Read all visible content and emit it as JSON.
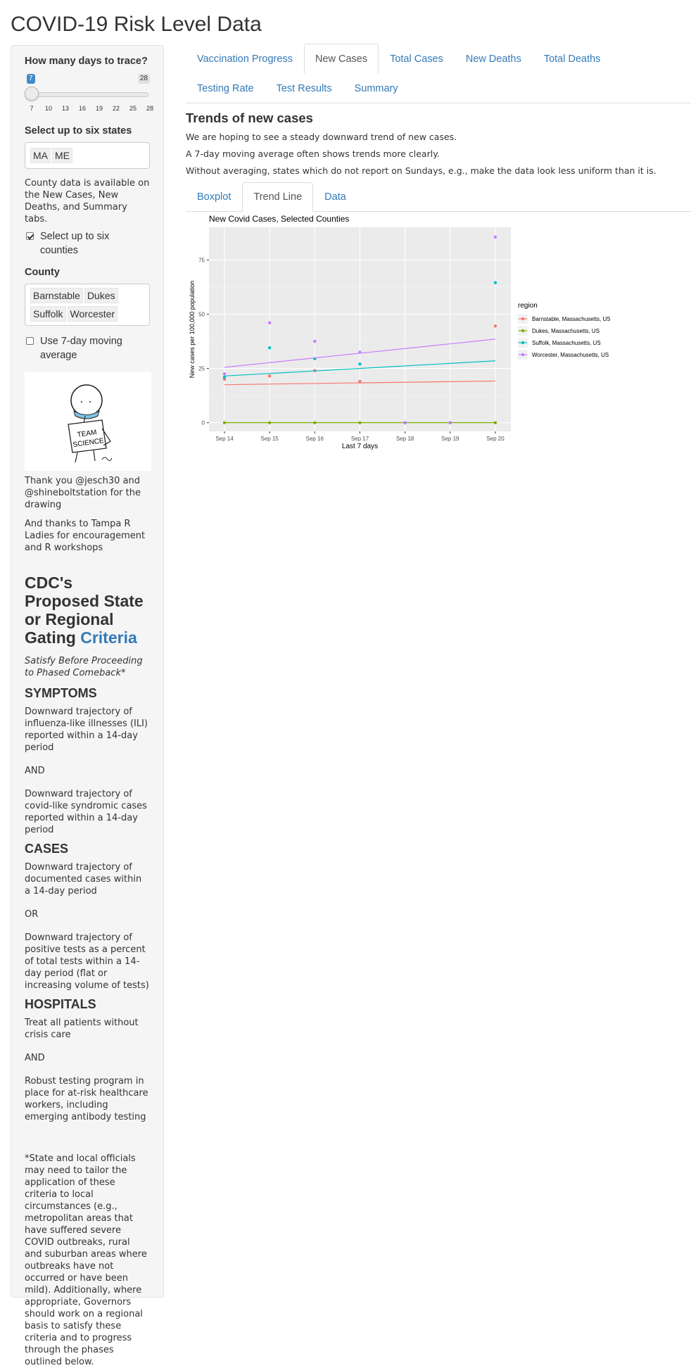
{
  "page_title": "COVID-19 Risk Level Data",
  "sidebar": {
    "days_label": "How many days to trace?",
    "slider": {
      "min": 7,
      "max": 28,
      "value": 7,
      "value_label": "7",
      "max_label": "28",
      "ticks": [
        "7",
        "10",
        "13",
        "16",
        "19",
        "22",
        "25",
        "28"
      ]
    },
    "states_label": "Select up to six states",
    "states": [
      "MA",
      "ME"
    ],
    "county_note": "County data is available on the New Cases, New Deaths, and Summary tabs.",
    "counties_checkbox": {
      "label": "Select up to six counties",
      "checked": true
    },
    "county_label": "County",
    "counties": [
      "Barnstable",
      "Dukes",
      "Suffolk",
      "Worcester"
    ],
    "moving_avg_checkbox": {
      "label": "Use 7-day moving average",
      "checked": false
    },
    "drawing": {
      "sign_line1": "TEAM",
      "sign_line2": "SCIENCE"
    },
    "thanks1": "Thank you @jesch30 and @shineboltstation for the drawing",
    "thanks2": "And thanks to Tampa R Ladies for encouragement and R workshops",
    "cdc_heading": "CDC's Proposed State or Regional Gating",
    "cdc_link": "Criteria",
    "cdc_sub": "Satisfy Before Proceeding to Phased Comeback*",
    "symptoms_heading": "SYMPTOMS",
    "symptoms_1": "Downward trajectory of influenza-like illnesses (ILI) reported within a 14-day period",
    "and_1": "AND",
    "symptoms_2": "Downward trajectory of covid-like syndromic cases reported within a 14-day period",
    "cases_heading": "CASES",
    "cases_1": "Downward trajectory of documented cases within a 14-day period",
    "or_1": "OR",
    "cases_2": "Downward trajectory of positive tests as a percent of total tests within a 14-day period (flat or increasing volume of tests)",
    "hospitals_heading": "HOSPITALS",
    "hospitals_1": "Treat all patients without crisis care",
    "and_2": "AND",
    "hospitals_2": "Robust testing program in place for at-risk healthcare workers, including emerging antibody testing",
    "footnote": "*State and local officials may need to tailor the application of these criteria to local circumstances (e.g., metropolitan areas that have suffered severe COVID outbreaks, rural and suburban areas where outbreaks have not occurred or have been mild). Additionally, where appropriate, Governors should work on a regional basis to satisfy these criteria and to progress through the phases outlined below."
  },
  "main": {
    "tabs": [
      "Vaccination Progress",
      "New Cases",
      "Total Cases",
      "New Deaths",
      "Total Deaths",
      "Testing Rate",
      "Test Results",
      "Summary"
    ],
    "active_tab": "New Cases",
    "heading": "Trends of new cases",
    "p1": "We are hoping to see a steady downward trend of new cases.",
    "p2": "A 7-day moving average often shows trends more clearly.",
    "p3": "Without averaging, states which do not report on Sundays, e.g., make the data look less uniform than it is.",
    "subtabs": [
      "Boxplot",
      "Trend Line",
      "Data"
    ],
    "active_subtab": "Trend Line"
  },
  "chart_data": {
    "type": "scatter",
    "title": "New Covid Cases, Selected Counties",
    "xlabel": "Last 7 days",
    "ylabel": "New cases per 100,000 population",
    "categories": [
      "Sep 14",
      "Sep 15",
      "Sep 16",
      "Sep 17",
      "Sep 18",
      "Sep 19",
      "Sep 20"
    ],
    "ylim": [
      -4,
      90
    ],
    "yticks": [
      0,
      25,
      50,
      75
    ],
    "legend_title": "region",
    "legend_position": "right",
    "grid": true,
    "series": [
      {
        "name": "Barnstable, Massachusetts, US",
        "color": "#F8766D",
        "values": [
          20,
          21.5,
          24,
          19,
          0,
          0,
          44.5
        ],
        "trend": [
          17.5,
          19.2
        ]
      },
      {
        "name": "Dukes, Massachusetts, US",
        "color": "#7CAE00",
        "values": [
          0,
          0,
          0,
          0,
          0,
          0,
          0
        ],
        "trend": [
          0,
          0
        ]
      },
      {
        "name": "Suffolk, Massachusetts, US",
        "color": "#00BFC4",
        "values": [
          21,
          34.5,
          29.5,
          27,
          0,
          0,
          64.5
        ],
        "trend": [
          21.5,
          28.5
        ]
      },
      {
        "name": "Worcester, Massachusetts, US",
        "color": "#C77CFF",
        "values": [
          22.5,
          46,
          37.5,
          32.5,
          0,
          0,
          85.5
        ],
        "trend": [
          25.5,
          38.5
        ]
      }
    ]
  }
}
